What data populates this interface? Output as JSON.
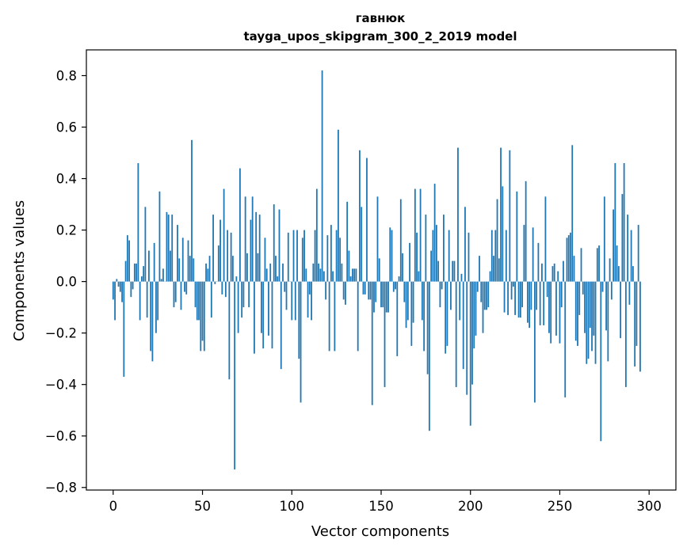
{
  "chart_data": {
    "type": "bar",
    "title": "гавнюк",
    "subtitle": "tayga_upos_skipgram_300_2_2019 model",
    "xlabel": "Vector components",
    "ylabel": "Components values",
    "xlim": [
      -15,
      315
    ],
    "ylim": [
      -0.81,
      0.9
    ],
    "xticks": [
      0,
      50,
      100,
      150,
      200,
      250,
      300
    ],
    "yticks": [
      -0.8,
      -0.6,
      -0.4,
      -0.2,
      0.0,
      0.2,
      0.4,
      0.6,
      0.8
    ],
    "ytick_labels": [
      "−0.8",
      "−0.6",
      "−0.4",
      "−0.2",
      "0.0",
      "0.2",
      "0.4",
      "0.6",
      "0.8"
    ],
    "xtick_labels": [
      "0",
      "50",
      "100",
      "150",
      "200",
      "250",
      "300"
    ],
    "bar_color": "#1f77b4",
    "grid": false,
    "values": [
      -0.07,
      -0.15,
      0.01,
      -0.02,
      -0.04,
      -0.08,
      -0.37,
      0.08,
      0.18,
      0.16,
      -0.06,
      -0.03,
      0.07,
      0.07,
      0.46,
      -0.15,
      0.02,
      0.06,
      0.29,
      -0.14,
      0.12,
      -0.27,
      -0.31,
      0.15,
      -0.2,
      -0.15,
      0.35,
      0.01,
      0.05,
      0.0,
      0.27,
      0.26,
      0.12,
      0.26,
      -0.1,
      -0.08,
      0.22,
      0.09,
      -0.11,
      0.17,
      -0.04,
      -0.05,
      0.16,
      0.1,
      0.55,
      0.09,
      -0.1,
      -0.15,
      -0.15,
      -0.27,
      -0.23,
      -0.27,
      0.07,
      0.05,
      0.1,
      -0.14,
      0.26,
      -0.01,
      0.0,
      0.14,
      0.24,
      -0.05,
      0.36,
      -0.06,
      0.2,
      -0.38,
      0.19,
      0.1,
      -0.73,
      0.02,
      -0.2,
      0.44,
      -0.14,
      -0.1,
      0.33,
      0.11,
      -0.1,
      0.24,
      0.33,
      -0.28,
      0.27,
      0.11,
      0.26,
      -0.2,
      -0.26,
      0.17,
      0.05,
      -0.21,
      0.07,
      -0.26,
      0.3,
      0.1,
      0.02,
      0.28,
      -0.34,
      0.07,
      -0.04,
      -0.11,
      0.19,
      0.0,
      -0.15,
      0.2,
      -0.15,
      0.2,
      -0.3,
      -0.47,
      0.17,
      0.2,
      0.05,
      -0.14,
      -0.05,
      -0.15,
      0.07,
      0.2,
      0.36,
      0.07,
      0.05,
      0.82,
      0.04,
      -0.07,
      0.18,
      -0.27,
      0.22,
      0.04,
      -0.27,
      0.2,
      0.59,
      0.17,
      0.07,
      -0.07,
      -0.09,
      0.31,
      0.12,
      0.02,
      0.05,
      0.05,
      0.05,
      -0.27,
      0.51,
      0.29,
      -0.05,
      -0.05,
      0.48,
      -0.07,
      -0.07,
      -0.48,
      -0.12,
      -0.08,
      0.33,
      0.09,
      -0.1,
      -0.1,
      -0.41,
      -0.12,
      -0.12,
      0.21,
      0.2,
      -0.04,
      -0.03,
      -0.29,
      0.02,
      0.32,
      0.11,
      -0.08,
      -0.18,
      -0.15,
      0.15,
      -0.25,
      -0.16,
      0.36,
      0.19,
      0.04,
      0.36,
      -0.15,
      -0.27,
      0.26,
      -0.36,
      -0.58,
      0.12,
      0.2,
      0.38,
      0.22,
      0.08,
      -0.1,
      -0.03,
      0.26,
      -0.28,
      -0.25,
      0.2,
      -0.11,
      0.08,
      0.08,
      -0.41,
      0.52,
      -0.15,
      0.03,
      -0.34,
      0.29,
      -0.44,
      0.19,
      -0.56,
      -0.4,
      -0.26,
      -0.21,
      -0.04,
      0.1,
      -0.08,
      -0.2,
      -0.11,
      -0.11,
      -0.1,
      0.04,
      0.2,
      0.1,
      0.2,
      0.32,
      0.09,
      0.52,
      0.37,
      -0.12,
      0.2,
      -0.13,
      0.51,
      -0.07,
      -0.02,
      -0.13,
      0.35,
      -0.14,
      -0.14,
      -0.1,
      0.22,
      0.39,
      -0.16,
      -0.18,
      -0.11,
      0.21,
      -0.47,
      -0.11,
      0.15,
      -0.17,
      0.07,
      -0.17,
      0.33,
      -0.06,
      -0.2,
      -0.24,
      0.06,
      0.07,
      -0.21,
      0.04,
      -0.24,
      -0.1,
      0.08,
      -0.45,
      0.17,
      0.18,
      0.19,
      0.53,
      0.1,
      -0.23,
      -0.25,
      -0.13,
      0.13,
      -0.05,
      -0.2,
      -0.32,
      -0.3,
      -0.18,
      -0.27,
      -0.21,
      -0.32,
      0.13,
      0.14,
      -0.62,
      -0.04,
      0.33,
      -0.19,
      -0.31,
      0.09,
      -0.07,
      0.28,
      0.46,
      0.14,
      0.06,
      -0.22,
      0.34,
      0.46,
      -0.41,
      0.26,
      -0.09,
      0.2,
      0.06,
      -0.33,
      -0.25,
      0.22,
      -0.35
    ]
  }
}
